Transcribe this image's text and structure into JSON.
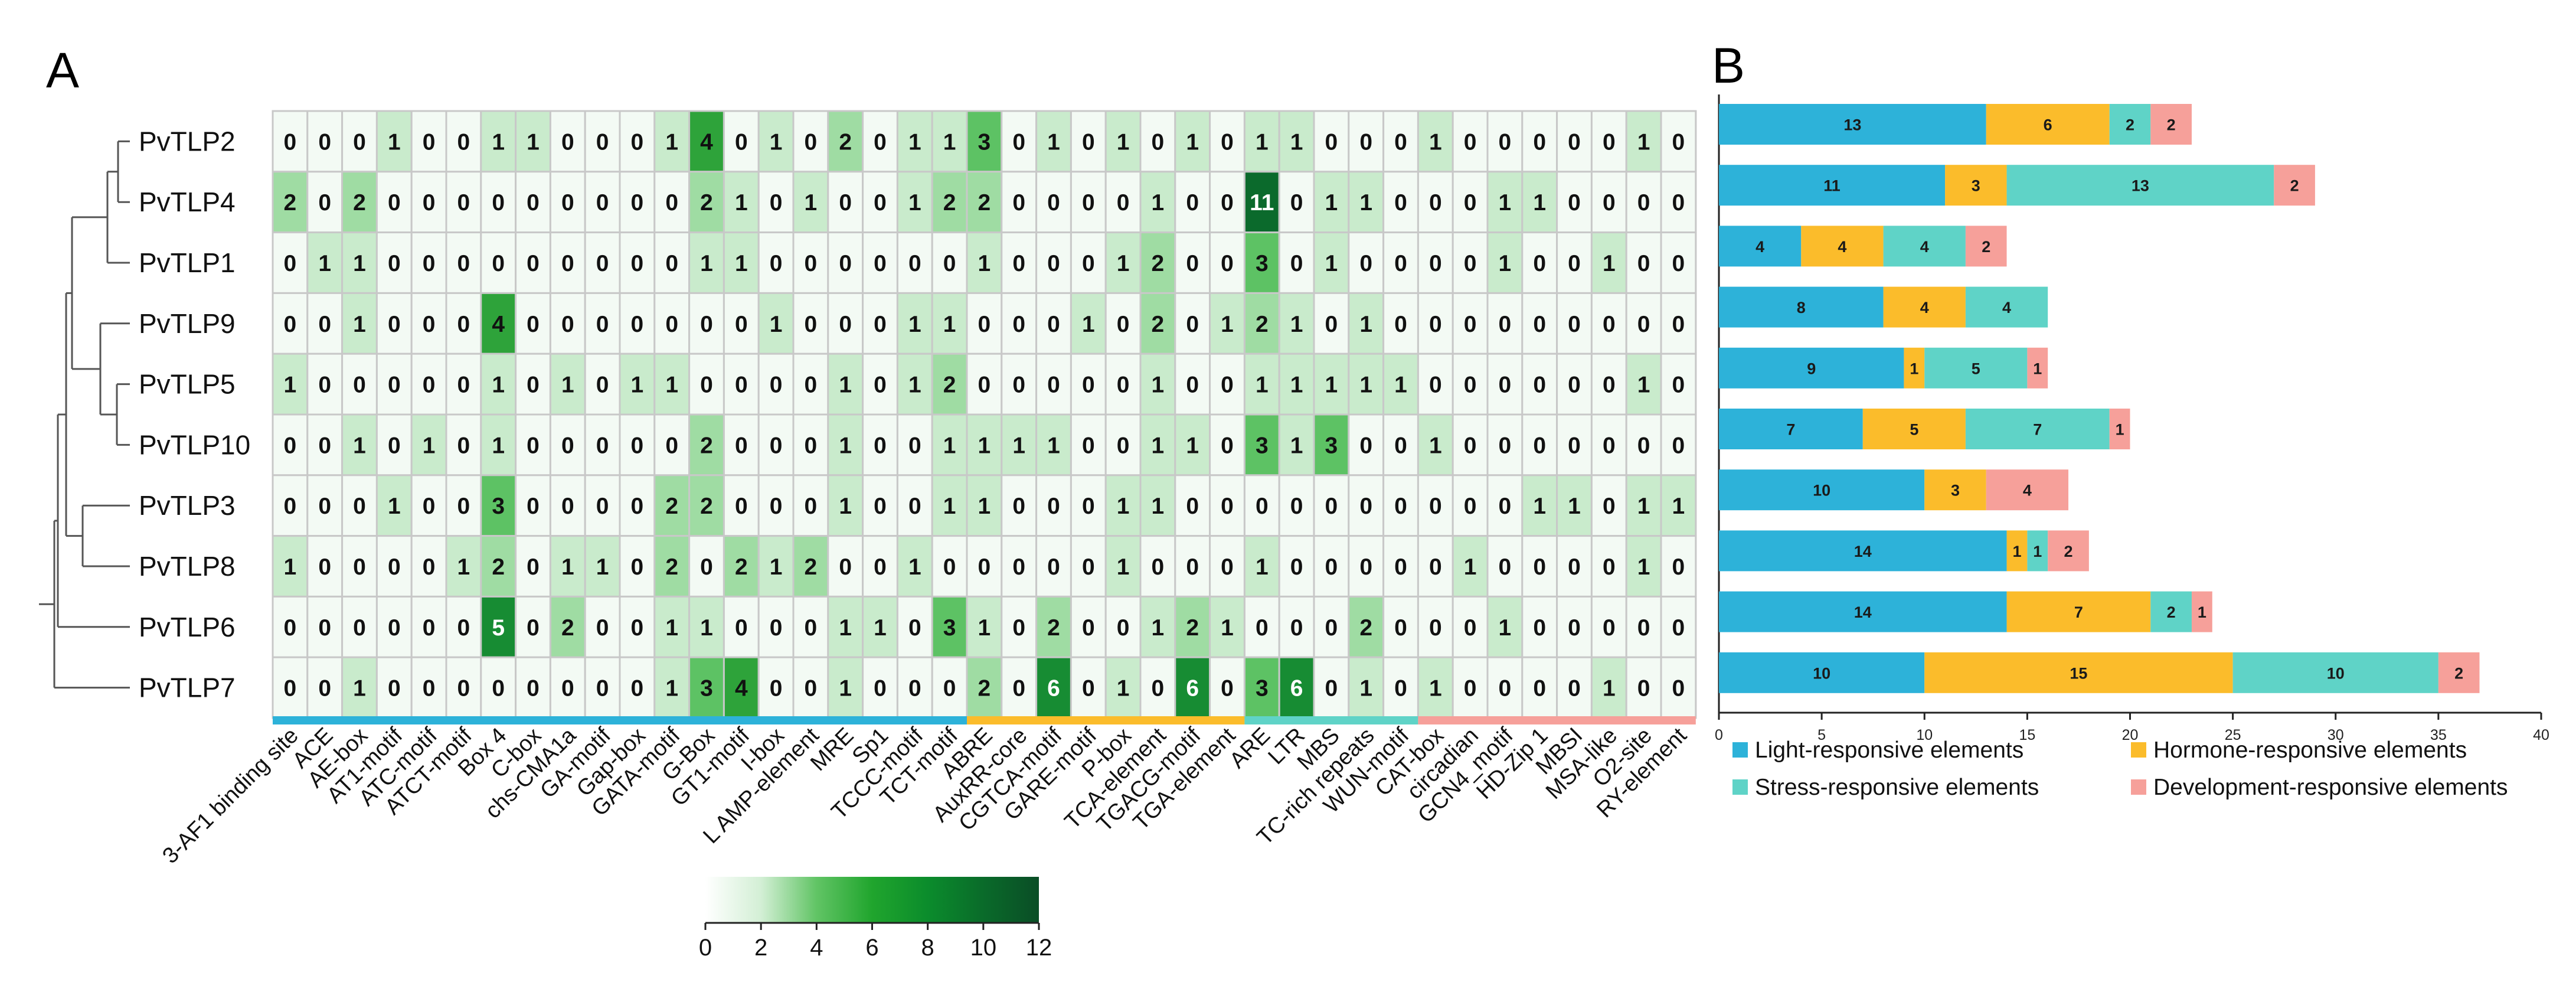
{
  "panels": {
    "a": "A",
    "b": "B"
  },
  "chart_data": [
    {
      "type": "heatmap",
      "title": "",
      "rows": [
        "PvTLP2",
        "PvTLP4",
        "PvTLP1",
        "PvTLP9",
        "PvTLP5",
        "PvTLP10",
        "PvTLP3",
        "PvTLP8",
        "PvTLP6",
        "PvTLP7"
      ],
      "columns": [
        "3-AF1 binding site",
        "ACE",
        "AE-box",
        "AT1-motif",
        "ATC-motif",
        "ATCT-motif",
        "Box 4",
        "C-box",
        "chs-CMA1a",
        "GA-motif",
        "Gap-box",
        "GATA-motif",
        "G-Box",
        "GT1-motif",
        "I-box",
        "L AMP-element",
        "MRE",
        "Sp1",
        "TCCC-motif",
        "TCT-motif",
        "ABRE",
        "AuxRR-core",
        "CGTCA-motif",
        "GARE-motif",
        "P-box",
        "TCA-element",
        "TGACG-motif",
        "TGA-element",
        "ARE",
        "LTR",
        "MBS",
        "TC-rich repeats",
        "WUN-motif",
        "CAT-box",
        "circadian",
        "GCN4_motif",
        "HD-Zip 1",
        "MBSI",
        "MSA-like",
        "O2-site",
        "RY-element"
      ],
      "values": [
        [
          0,
          0,
          0,
          1,
          0,
          0,
          1,
          1,
          0,
          0,
          0,
          1,
          4,
          0,
          1,
          0,
          2,
          0,
          1,
          1,
          3,
          0,
          1,
          0,
          1,
          0,
          1,
          0,
          1,
          1,
          0,
          0,
          0,
          1,
          0,
          0,
          0,
          0,
          0,
          1,
          0
        ],
        [
          2,
          0,
          2,
          0,
          0,
          0,
          0,
          0,
          0,
          0,
          0,
          0,
          2,
          1,
          0,
          1,
          0,
          0,
          1,
          2,
          2,
          0,
          0,
          0,
          0,
          1,
          0,
          0,
          11,
          0,
          1,
          1,
          0,
          0,
          0,
          1,
          1,
          0,
          0,
          0,
          0
        ],
        [
          0,
          1,
          1,
          0,
          0,
          0,
          0,
          0,
          0,
          0,
          0,
          0,
          1,
          1,
          0,
          0,
          0,
          0,
          0,
          0,
          1,
          0,
          0,
          0,
          1,
          2,
          0,
          0,
          3,
          0,
          1,
          0,
          0,
          0,
          0,
          1,
          0,
          0,
          1,
          0,
          0
        ],
        [
          0,
          0,
          1,
          0,
          0,
          0,
          4,
          0,
          0,
          0,
          0,
          0,
          0,
          0,
          1,
          0,
          0,
          0,
          1,
          1,
          0,
          0,
          0,
          1,
          0,
          2,
          0,
          1,
          2,
          1,
          0,
          1,
          0,
          0,
          0,
          0,
          0,
          0,
          0,
          0,
          0
        ],
        [
          1,
          0,
          0,
          0,
          0,
          0,
          1,
          0,
          1,
          0,
          1,
          1,
          0,
          0,
          0,
          0,
          1,
          0,
          1,
          2,
          0,
          0,
          0,
          0,
          0,
          1,
          0,
          0,
          1,
          1,
          1,
          1,
          1,
          0,
          0,
          0,
          0,
          0,
          0,
          1,
          0
        ],
        [
          0,
          0,
          1,
          0,
          1,
          0,
          1,
          0,
          0,
          0,
          0,
          0,
          2,
          0,
          0,
          0,
          1,
          0,
          0,
          1,
          1,
          1,
          1,
          0,
          0,
          1,
          1,
          0,
          3,
          1,
          3,
          0,
          0,
          1,
          0,
          0,
          0,
          0,
          0,
          0,
          0
        ],
        [
          0,
          0,
          0,
          1,
          0,
          0,
          3,
          0,
          0,
          0,
          0,
          2,
          2,
          0,
          0,
          0,
          1,
          0,
          0,
          1,
          1,
          0,
          0,
          0,
          1,
          1,
          0,
          0,
          0,
          0,
          0,
          0,
          0,
          0,
          0,
          0,
          1,
          1,
          0,
          1,
          1
        ],
        [
          1,
          0,
          0,
          0,
          0,
          1,
          2,
          0,
          1,
          1,
          0,
          2,
          0,
          2,
          1,
          2,
          0,
          0,
          1,
          0,
          0,
          0,
          0,
          0,
          1,
          0,
          0,
          0,
          1,
          0,
          0,
          0,
          0,
          0,
          1,
          0,
          0,
          0,
          0,
          1,
          0
        ],
        [
          0,
          0,
          0,
          0,
          0,
          0,
          5,
          0,
          2,
          0,
          0,
          1,
          1,
          0,
          0,
          0,
          1,
          1,
          0,
          3,
          1,
          0,
          2,
          0,
          0,
          1,
          2,
          1,
          0,
          0,
          0,
          2,
          0,
          0,
          0,
          1,
          0,
          0,
          0,
          0,
          0
        ],
        [
          0,
          0,
          1,
          0,
          0,
          0,
          0,
          0,
          0,
          0,
          0,
          1,
          3,
          4,
          0,
          0,
          1,
          0,
          0,
          0,
          2,
          0,
          6,
          0,
          1,
          0,
          6,
          0,
          3,
          6,
          0,
          1,
          0,
          1,
          0,
          0,
          0,
          0,
          1,
          0,
          0
        ]
      ],
      "category_groups": [
        {
          "name": "Light-responsive elements",
          "first": 0,
          "last": 19,
          "color": "#2DB2D9"
        },
        {
          "name": "Hormone-responsive elements",
          "first": 20,
          "last": 27,
          "color": "#FBBC2B"
        },
        {
          "name": "Stress-responsive elements",
          "first": 28,
          "last": 32,
          "color": "#5FD3C7"
        },
        {
          "name": "Development-responsive elements",
          "first": 33,
          "last": 40,
          "color": "#F6A09A"
        }
      ],
      "colorbar": {
        "min": 0,
        "max": 12,
        "ticks": [
          "0",
          "2",
          "4",
          "6",
          "8",
          "10",
          "12"
        ],
        "colors": [
          "#ffffff",
          "#d3efd5",
          "#61c465",
          "#20a52d",
          "#0b8c2c",
          "#0a6b2a",
          "#0a4d26"
        ]
      },
      "dendrogram": "present"
    },
    {
      "type": "bar",
      "orientation": "horizontal",
      "stacked": true,
      "categories": [
        "PvTLP2",
        "PvTLP4",
        "PvTLP1",
        "PvTLP9",
        "PvTLP5",
        "PvTLP10",
        "PvTLP3",
        "PvTLP8",
        "PvTLP6",
        "PvTLP7"
      ],
      "series": [
        {
          "name": "Light-responsive elements",
          "color": "#2DB2D9",
          "values": [
            13,
            11,
            4,
            8,
            9,
            7,
            10,
            14,
            14,
            10
          ]
        },
        {
          "name": "Hormone-responsive elements",
          "color": "#FBBC2B",
          "values": [
            6,
            3,
            4,
            4,
            1,
            5,
            3,
            1,
            7,
            15
          ]
        },
        {
          "name": "Stress-responsive elements",
          "color": "#5FD3C7",
          "values": [
            2,
            13,
            4,
            4,
            5,
            7,
            0,
            1,
            2,
            10
          ]
        },
        {
          "name": "Development-responsive elements",
          "color": "#F6A09A",
          "values": [
            2,
            2,
            2,
            0,
            1,
            1,
            4,
            2,
            1,
            2
          ]
        }
      ],
      "xlim": [
        0,
        40
      ],
      "xticks": [
        "0",
        "5",
        "10",
        "15",
        "20",
        "25",
        "30",
        "35",
        "40"
      ],
      "legend": "bottom"
    }
  ]
}
